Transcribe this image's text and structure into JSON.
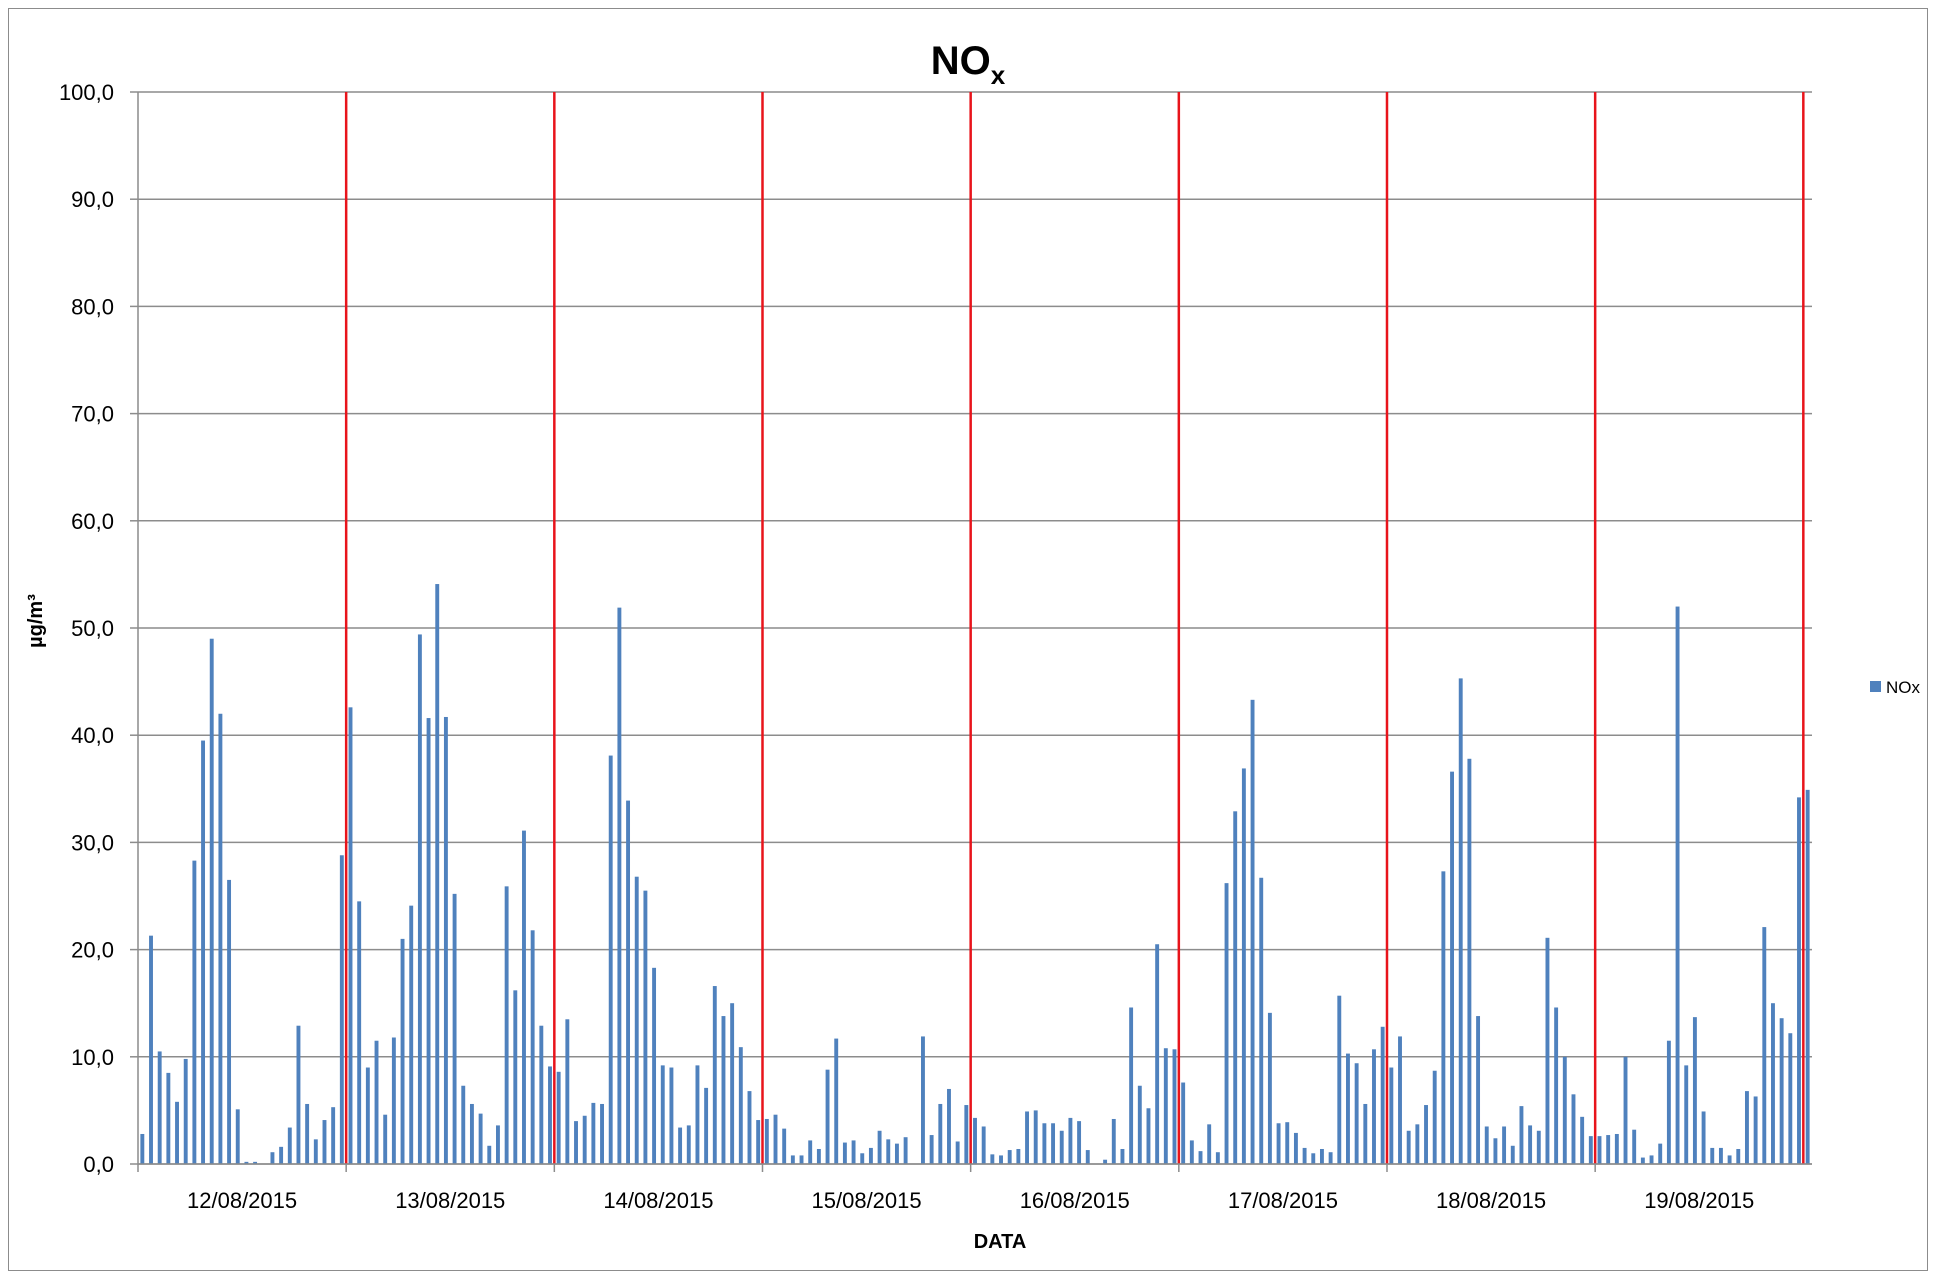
{
  "chart_data": {
    "type": "bar",
    "title": "NO",
    "title_subscript": "x",
    "xlabel": "DATA",
    "ylabel": "µg/m³",
    "ylim": [
      0,
      100
    ],
    "y_ticks": [
      "0,0",
      "10,0",
      "20,0",
      "30,0",
      "40,0",
      "50,0",
      "60,0",
      "70,0",
      "80,0",
      "90,0",
      "100,0"
    ],
    "x_tick_labels": [
      "12/08/2015",
      "13/08/2015",
      "14/08/2015",
      "15/08/2015",
      "16/08/2015",
      "17/08/2015",
      "18/08/2015",
      "19/08/2015"
    ],
    "grid": true,
    "legend_position": "right",
    "series": [
      {
        "name": "NOx",
        "color": "#4f81bd",
        "values": [
          2.8,
          21.3,
          10.5,
          8.5,
          5.8,
          9.8,
          28.3,
          39.5,
          49.0,
          42.0,
          26.5,
          5.1,
          0.2,
          0.2,
          0.0,
          1.1,
          1.6,
          3.4,
          12.9,
          5.6,
          2.3,
          4.1,
          5.3,
          28.8,
          42.6,
          24.5,
          9.0,
          11.5,
          4.6,
          11.8,
          21.0,
          24.1,
          49.4,
          41.6,
          54.1,
          41.7,
          25.2,
          7.3,
          5.6,
          4.7,
          1.7,
          3.6,
          25.9,
          16.2,
          31.1,
          21.8,
          12.9,
          9.1,
          8.6,
          13.5,
          4.0,
          4.5,
          5.7,
          5.6,
          38.1,
          51.9,
          33.9,
          26.8,
          25.5,
          18.3,
          9.2,
          9.0,
          3.4,
          3.6,
          9.2,
          7.1,
          16.6,
          13.8,
          15.0,
          10.9,
          6.8,
          4.1,
          4.2,
          4.6,
          3.3,
          0.8,
          0.8,
          2.2,
          1.4,
          8.8,
          11.7,
          2.0,
          2.2,
          1.0,
          1.5,
          3.1,
          2.3,
          1.9,
          2.5,
          0.0,
          11.9,
          2.7,
          5.6,
          7.0,
          2.1,
          5.5,
          4.3,
          3.5,
          0.9,
          0.8,
          1.3,
          1.4,
          4.9,
          5.0,
          3.8,
          3.8,
          3.1,
          4.3,
          4.0,
          1.3,
          0.0,
          0.4,
          4.2,
          1.4,
          14.6,
          7.3,
          5.2,
          20.5,
          10.8,
          10.7,
          7.6,
          2.2,
          1.2,
          3.7,
          1.1,
          26.2,
          32.9,
          36.9,
          43.3,
          26.7,
          14.1,
          3.8,
          3.9,
          2.9,
          1.5,
          1.0,
          1.4,
          1.1,
          15.7,
          10.3,
          9.4,
          5.6,
          10.7,
          12.8,
          9.0,
          11.9,
          3.1,
          3.7,
          5.5,
          8.7,
          27.3,
          36.6,
          45.3,
          37.8,
          13.8,
          3.5,
          2.4,
          3.5,
          1.7,
          5.4,
          3.6,
          3.1,
          21.1,
          14.6,
          10.0,
          6.5,
          4.4,
          2.6,
          2.6,
          2.7,
          2.8,
          10.0,
          3.2,
          0.6,
          0.8,
          1.9,
          11.5,
          52.0,
          9.2,
          13.7,
          4.9,
          1.5,
          1.5,
          0.8,
          1.4,
          6.8,
          6.3,
          22.1,
          15.0,
          13.6,
          12.2,
          34.2,
          34.9
        ]
      }
    ]
  }
}
